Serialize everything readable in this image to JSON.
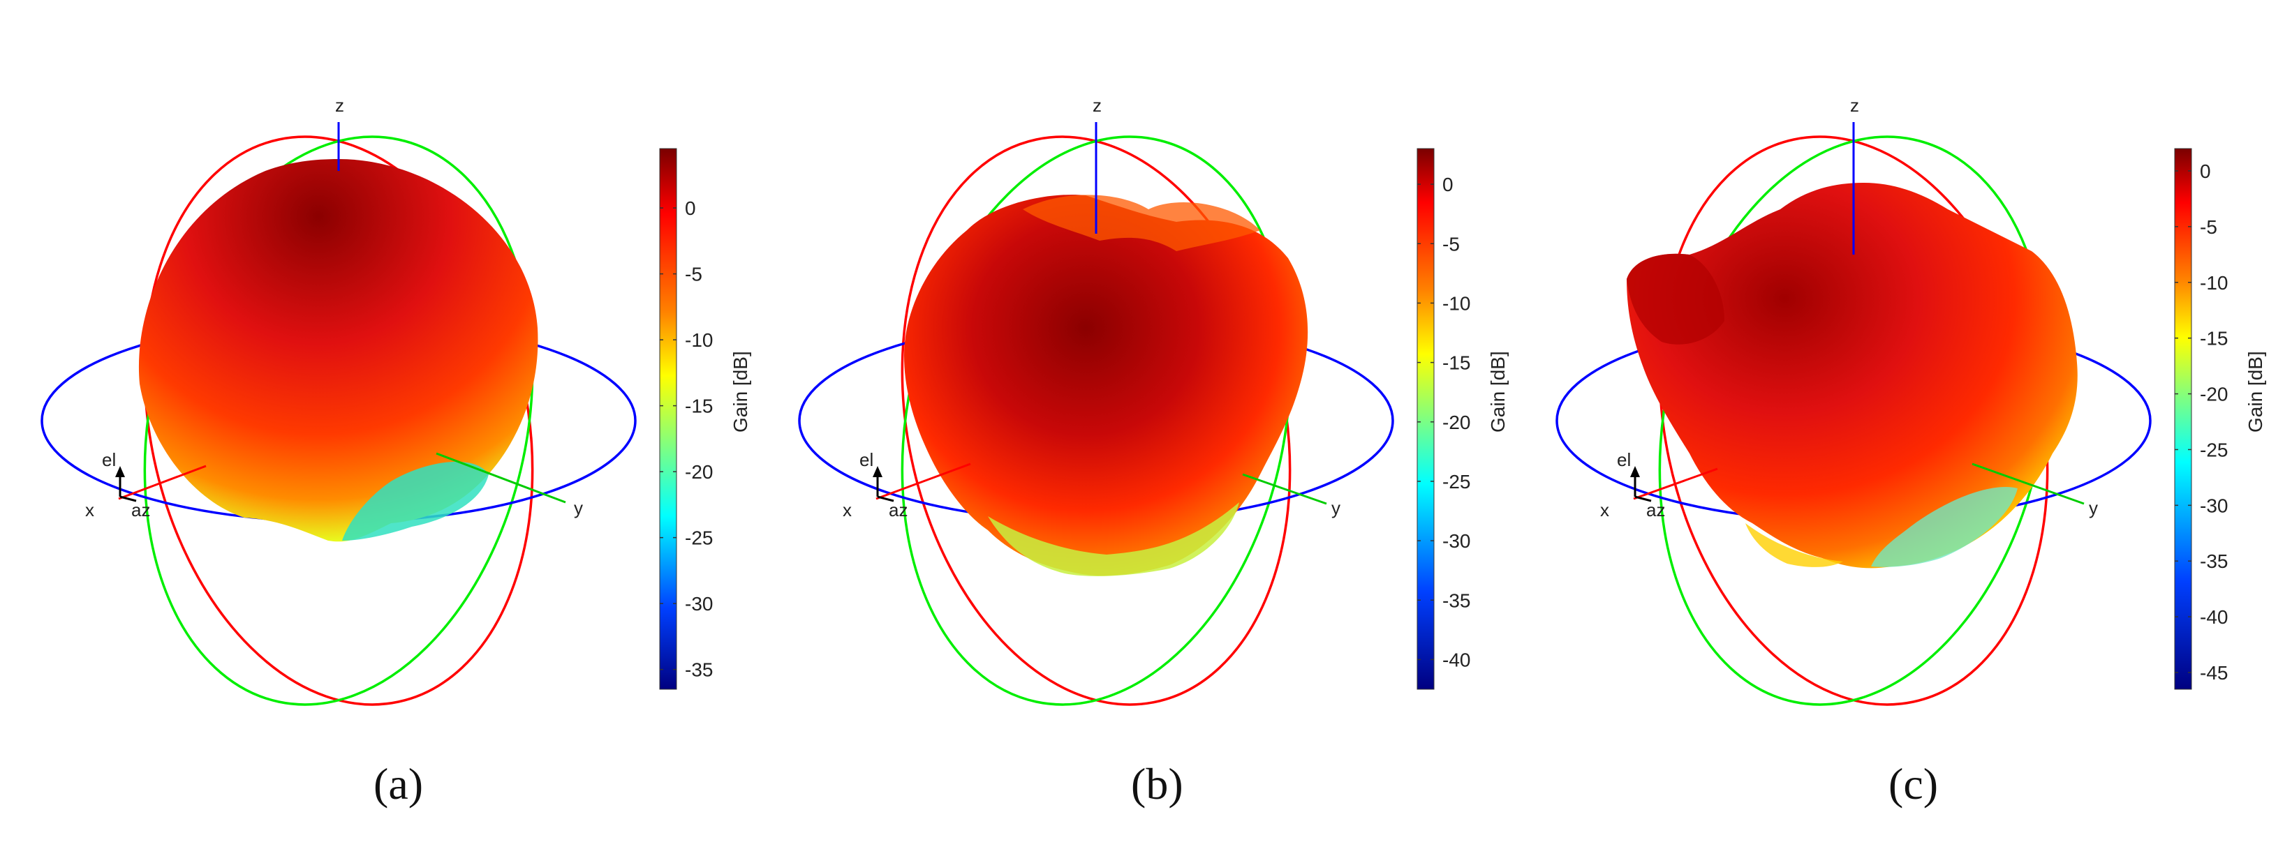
{
  "panels": [
    {
      "caption": "(a)",
      "colorbar": {
        "title": "Gain [dB]",
        "ticks": [
          "0",
          "-5",
          "-10",
          "-15",
          "-20",
          "-25",
          "-30",
          "-35"
        ],
        "min": -36.5,
        "max": 4.5
      },
      "axes": {
        "z": "z",
        "x": "x",
        "y": "y",
        "el": "el",
        "az": "az"
      },
      "pattern": "smooth-sphere"
    },
    {
      "caption": "(b)",
      "colorbar": {
        "title": "Gain [dB]",
        "ticks": [
          "0",
          "-5",
          "-10",
          "-15",
          "-20",
          "-25",
          "-30",
          "-35",
          "-40"
        ],
        "min": -42.5,
        "max": 3
      },
      "axes": {
        "z": "z",
        "x": "x",
        "y": "y",
        "el": "el",
        "az": "az"
      },
      "pattern": "lobed-irregular"
    },
    {
      "caption": "(c)",
      "colorbar": {
        "title": "Gain [dB]",
        "ticks": [
          "0",
          "-5",
          "-10",
          "-15",
          "-20",
          "-25",
          "-30",
          "-35",
          "-40",
          "-45"
        ],
        "min": -46.5,
        "max": 2
      },
      "axes": {
        "z": "z",
        "x": "x",
        "y": "y",
        "el": "el",
        "az": "az"
      },
      "pattern": "wide-lobed"
    }
  ],
  "colors": {
    "elevation_ring_1": "#ff0000",
    "elevation_ring_2": "#00ee00",
    "azimuth_ring": "#0000ff",
    "z_axis": "#0000ff",
    "x_axis": "#ff0000",
    "y_axis": "#00cc00"
  }
}
